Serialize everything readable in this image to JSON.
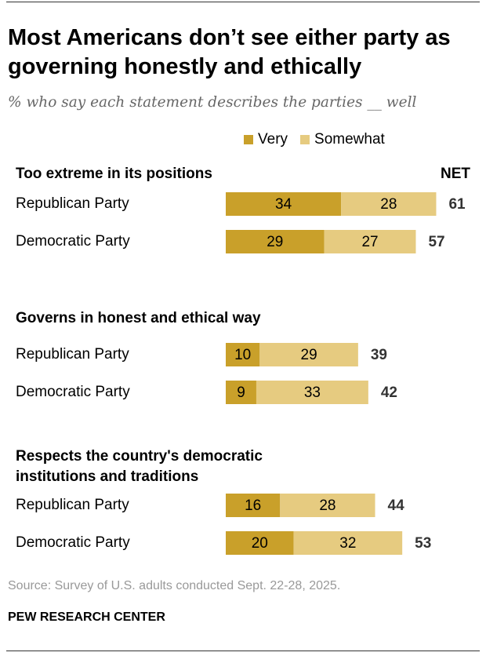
{
  "title": "Most Americans don’t see either party as governing honestly and ethically",
  "subtitle": "% who say each statement describes the parties __ well",
  "source": "Source: Survey of U.S. adults conducted Sept. 22-28, 2025.",
  "org": "PEW RESEARCH CENTER",
  "colors": {
    "very": "#C9A02A",
    "somewhat": "#E6CB80"
  },
  "chart_data": {
    "type": "bar",
    "orientation": "horizontal",
    "stacked": true,
    "net_label": "NET",
    "legend": [
      "Very",
      "Somewhat"
    ],
    "groups": [
      {
        "label": "Too extreme in its positions",
        "rows": [
          {
            "name": "Republican Party",
            "very": 34,
            "somewhat": 28,
            "net": 61
          },
          {
            "name": "Democratic Party",
            "very": 29,
            "somewhat": 27,
            "net": 57
          }
        ]
      },
      {
        "label": "Governs in honest and ethical way",
        "rows": [
          {
            "name": "Republican Party",
            "very": 10,
            "somewhat": 29,
            "net": 39
          },
          {
            "name": "Democratic Party",
            "very": 9,
            "somewhat": 33,
            "net": 42
          }
        ]
      },
      {
        "label": "Respects the country's democratic institutions and traditions",
        "rows": [
          {
            "name": "Republican Party",
            "very": 16,
            "somewhat": 28,
            "net": 44
          },
          {
            "name": "Democratic Party",
            "very": 20,
            "somewhat": 32,
            "net": 53
          }
        ]
      }
    ]
  }
}
